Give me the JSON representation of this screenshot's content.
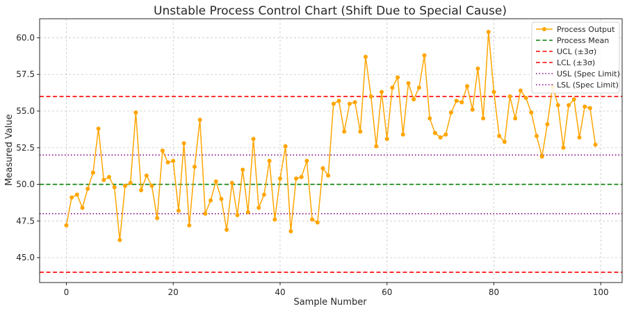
{
  "chart_data": {
    "type": "line",
    "title": "Unstable Process Control Chart (Shift Due to Special Cause)",
    "xlabel": "Sample Number",
    "ylabel": "Measured Value",
    "xlim": [
      -5,
      104
    ],
    "ylim": [
      43.3,
      61.3
    ],
    "xticks": [
      0,
      20,
      40,
      60,
      80,
      100
    ],
    "yticks": [
      45.0,
      47.5,
      50.0,
      52.5,
      55.0,
      57.5,
      60.0
    ],
    "xtick_labels": [
      "0",
      "20",
      "40",
      "60",
      "80",
      "100"
    ],
    "ytick_labels": [
      "45.0",
      "47.5",
      "50.0",
      "52.5",
      "55.0",
      "57.5",
      "60.0"
    ],
    "grid": true,
    "legend_position": "top-right",
    "series": [
      {
        "name": "Process Output",
        "color": "#FFA500",
        "marker": "circle",
        "x": [
          0,
          1,
          2,
          3,
          4,
          5,
          6,
          7,
          8,
          9,
          10,
          11,
          12,
          13,
          14,
          15,
          16,
          17,
          18,
          19,
          20,
          21,
          22,
          23,
          24,
          25,
          26,
          27,
          28,
          29,
          30,
          31,
          32,
          33,
          34,
          35,
          36,
          37,
          38,
          39,
          40,
          41,
          42,
          43,
          44,
          45,
          46,
          47,
          48,
          49,
          50,
          51,
          52,
          53,
          54,
          55,
          56,
          57,
          58,
          59,
          60,
          61,
          62,
          63,
          64,
          65,
          66,
          67,
          68,
          69,
          70,
          71,
          72,
          73,
          74,
          75,
          76,
          77,
          78,
          79,
          80,
          81,
          82,
          83,
          84,
          85,
          86,
          87,
          88,
          89,
          90,
          91,
          92,
          93,
          94,
          95,
          96,
          97,
          98,
          99
        ],
        "values": [
          47.2,
          49.1,
          49.3,
          48.4,
          49.7,
          50.8,
          53.8,
          50.3,
          50.5,
          49.8,
          46.2,
          49.9,
          50.1,
          54.9,
          49.6,
          50.6,
          49.9,
          47.7,
          52.3,
          51.5,
          51.6,
          48.2,
          52.8,
          47.2,
          51.2,
          54.4,
          48.0,
          48.9,
          50.2,
          49.0,
          46.9,
          50.1,
          47.9,
          51.0,
          48.1,
          53.1,
          48.4,
          49.3,
          51.6,
          47.6,
          50.4,
          52.6,
          46.8,
          50.4,
          50.5,
          51.6,
          47.6,
          47.4,
          51.1,
          50.6,
          55.5,
          55.7,
          53.6,
          55.5,
          55.6,
          53.6,
          58.7,
          56.0,
          52.6,
          56.3,
          53.1,
          56.6,
          57.3,
          53.4,
          56.9,
          55.8,
          56.6,
          58.8,
          54.5,
          53.5,
          53.2,
          53.4,
          54.9,
          55.7,
          55.6,
          56.7,
          55.1,
          57.9,
          54.5,
          60.4,
          56.3,
          53.3,
          52.9,
          56.0,
          54.5,
          56.4,
          55.9,
          54.9,
          53.3,
          51.9,
          54.1,
          56.7,
          55.4,
          52.5,
          55.4,
          55.8,
          53.2,
          55.3,
          55.2,
          52.7
        ]
      },
      {
        "name": "Process Mean",
        "color": "#008000",
        "style": "dashed",
        "y": 50.0
      },
      {
        "name": "UCL (±3σ)",
        "color": "#FF0000",
        "style": "dashed",
        "y": 56.0
      },
      {
        "name": "LCL (±3σ)",
        "color": "#FF0000",
        "style": "dashed",
        "y": 44.0
      },
      {
        "name": "USL (Spec Limit)",
        "color": "#800080",
        "style": "dotted",
        "y": 52.0
      },
      {
        "name": "LSL (Spec Limit)",
        "color": "#800080",
        "style": "dotted",
        "y": 48.0
      }
    ]
  }
}
